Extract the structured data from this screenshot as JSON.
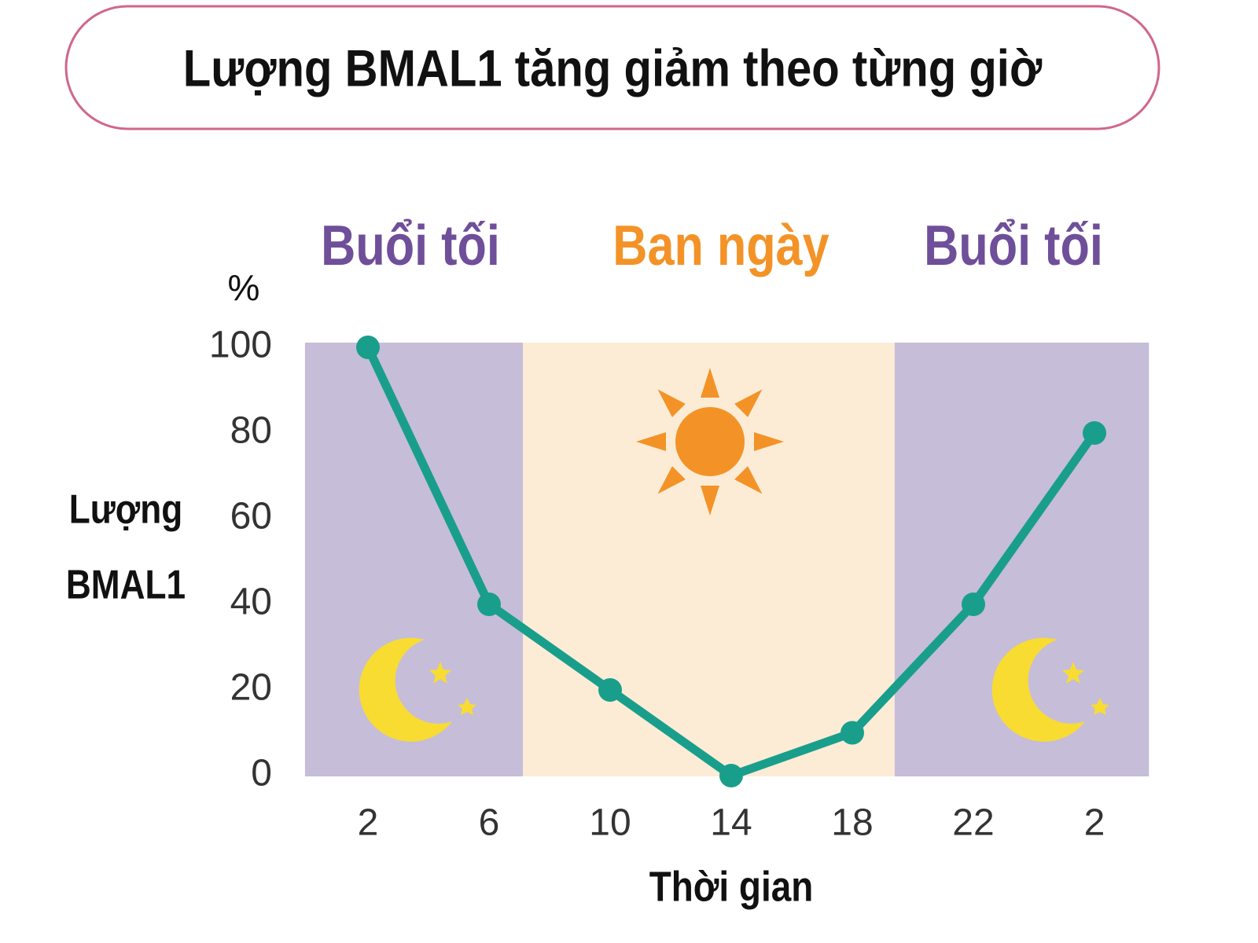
{
  "chart_data": {
    "type": "line",
    "title": "Lượng BMAL1 tăng giảm theo từng giờ",
    "y_unit": "%",
    "y_label": [
      "Lượng",
      "BMAL1"
    ],
    "x_label": "Thời gian",
    "categories": [
      "2",
      "6",
      "10",
      "14",
      "18",
      "22",
      "2"
    ],
    "values": [
      100,
      40,
      20,
      0,
      10,
      40,
      80
    ],
    "color": "#1a9e8c",
    "ylim": [
      0,
      100
    ],
    "yticks": [
      0,
      20,
      40,
      60,
      80,
      100
    ],
    "bands": [
      {
        "label": "Buổi tối",
        "color": "#6f4e9a",
        "fill": "#c6bdd9"
      },
      {
        "label": "Ban ngày",
        "color": "#f39327",
        "fill": "#fcecd6"
      },
      {
        "label": "Buổi tối",
        "color": "#6f4e9a",
        "fill": "#c6bdd9"
      }
    ]
  }
}
